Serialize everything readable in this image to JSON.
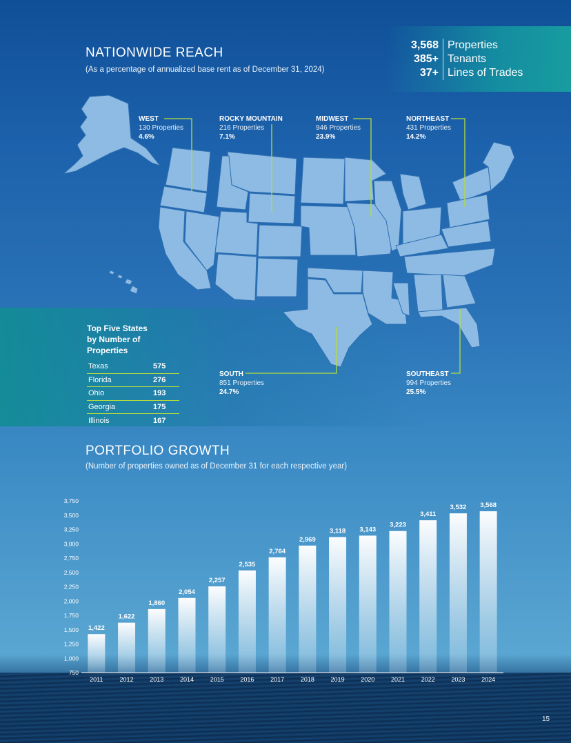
{
  "nationwide": {
    "title": "NATIONWIDE REACH",
    "subtitle": "(As a percentage of annualized base rent as of December 31, 2024)"
  },
  "stats": [
    {
      "value": "3,568",
      "label": "Properties"
    },
    {
      "value": "385+",
      "label": "Tenants"
    },
    {
      "value": "37+",
      "label": "Lines of Trades"
    }
  ],
  "regions": {
    "west": {
      "name": "WEST",
      "count": "130 Properties",
      "pct": "4.6%"
    },
    "rocky": {
      "name": "ROCKY MOUNTAIN",
      "count": "216 Properties",
      "pct": "7.1%"
    },
    "midwest": {
      "name": "MIDWEST",
      "count": "946 Properties",
      "pct": "23.9%"
    },
    "northeast": {
      "name": "NORTHEAST",
      "count": "431 Properties",
      "pct": "14.2%"
    },
    "south": {
      "name": "SOUTH",
      "count": "851 Properties",
      "pct": "24.7%"
    },
    "southeast": {
      "name": "SOUTHEAST",
      "count": "994 Properties",
      "pct": "25.5%"
    }
  },
  "top_five": {
    "title_line1": "Top Five States",
    "title_line2": "by Number of Properties",
    "rows": [
      {
        "state": "Texas",
        "value": "575"
      },
      {
        "state": "Florida",
        "value": "276"
      },
      {
        "state": "Ohio",
        "value": "193"
      },
      {
        "state": "Georgia",
        "value": "175"
      },
      {
        "state": "Illinois",
        "value": "167"
      }
    ]
  },
  "growth": {
    "title": "PORTFOLIO GROWTH",
    "subtitle": "(Number of properties owned as of December 31 for each respective year)"
  },
  "colors": {
    "accent_line": "#b7dd3a",
    "map_fill": "#8dbbe3",
    "map_stroke": "#2f6fb3"
  },
  "chart_data": {
    "type": "bar",
    "categories": [
      "2011",
      "2012",
      "2013",
      "2014",
      "2015",
      "2016",
      "2017",
      "2018",
      "2019",
      "2020",
      "2021",
      "2022",
      "2023",
      "2024"
    ],
    "values": [
      1422,
      1622,
      1860,
      2054,
      2257,
      2535,
      2764,
      2969,
      3118,
      3143,
      3223,
      3411,
      3532,
      3568
    ],
    "value_labels": [
      "1,422",
      "1,622",
      "1,860",
      "2,054",
      "2,257",
      "2,535",
      "2,764",
      "2,969",
      "3,118",
      "3,143",
      "3,223",
      "3,411",
      "3,532",
      "3,568"
    ],
    "yticks": [
      "750",
      "1,000",
      "1,250",
      "1,500",
      "1,750",
      "2,000",
      "2,250",
      "2,500",
      "2,750",
      "3,000",
      "3,250",
      "3,500",
      "3,750"
    ],
    "ylim": [
      750,
      3750
    ],
    "xlabel": "",
    "ylabel": "",
    "grid": false
  },
  "page_number": "15"
}
